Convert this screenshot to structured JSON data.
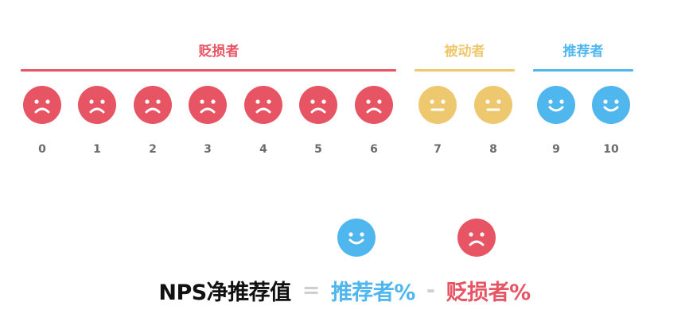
{
  "colors": {
    "detractor": "#e75463",
    "passive": "#edc86e",
    "promoter": "#4fb7ee",
    "score_text": "#6b6b6b",
    "formula_text": "#111111",
    "operator": "#cfcfcf"
  },
  "groups": [
    {
      "key": "detractor",
      "label": "贬损者",
      "color": "#e75463"
    },
    {
      "key": "passive",
      "label": "被动者",
      "color": "#edc86e"
    },
    {
      "key": "promoter",
      "label": "推荐者",
      "color": "#4fb7ee"
    }
  ],
  "scale": [
    {
      "score": "0",
      "group": "detractor",
      "face": "frown-face-icon"
    },
    {
      "score": "1",
      "group": "detractor",
      "face": "frown-face-icon"
    },
    {
      "score": "2",
      "group": "detractor",
      "face": "frown-face-icon"
    },
    {
      "score": "3",
      "group": "detractor",
      "face": "frown-face-icon"
    },
    {
      "score": "4",
      "group": "detractor",
      "face": "frown-face-icon"
    },
    {
      "score": "5",
      "group": "detractor",
      "face": "frown-face-icon"
    },
    {
      "score": "6",
      "group": "detractor",
      "face": "frown-face-icon"
    },
    {
      "score": "7",
      "group": "passive",
      "face": "neutral-face-icon"
    },
    {
      "score": "8",
      "group": "passive",
      "face": "neutral-face-icon"
    },
    {
      "score": "9",
      "group": "promoter",
      "face": "smile-face-icon"
    },
    {
      "score": "10",
      "group": "promoter",
      "face": "smile-face-icon"
    }
  ],
  "formula": {
    "lhs": "NPS净推荐值",
    "equals": "=",
    "term1": "推荐者%",
    "minus": "-",
    "term2": "贬损者%"
  },
  "formula_icons": [
    {
      "face": "smile-face-icon",
      "group": "promoter"
    },
    {
      "face": "frown-face-icon",
      "group": "detractor"
    }
  ]
}
